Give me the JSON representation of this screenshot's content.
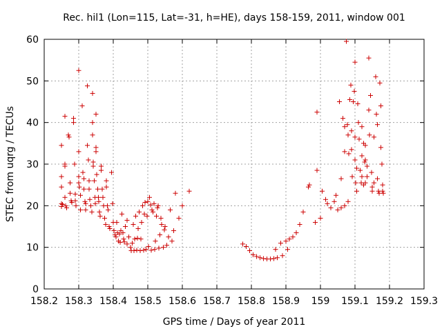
{
  "chart_data": {
    "type": "scatter",
    "title": "Rec. hil1 (Lon=115, Lat=-31, h=HE), days 158-159, 2011, window 001",
    "xlabel": "GPS time / Days of year 2011",
    "ylabel": "STEC from uqrg / TECUs",
    "xlim": [
      158.2,
      159.3
    ],
    "ylim": [
      0,
      60
    ],
    "xticks": [
      "158.2",
      "158.3",
      "158.4",
      "158.5",
      "158.6",
      "158.7",
      "158.8",
      "158.9",
      "159",
      "159.1",
      "159.2",
      "159.3"
    ],
    "yticks": [
      "0",
      "10",
      "20",
      "30",
      "40",
      "50",
      "60"
    ],
    "grid": true,
    "marker": "+",
    "color": "#cc0000",
    "series": [
      {
        "points": [
          [
            158.25,
            34.5
          ],
          [
            158.25,
            27
          ],
          [
            158.25,
            24.5
          ],
          [
            158.25,
            20.5
          ],
          [
            158.25,
            19.8
          ],
          [
            158.253,
            20.3
          ],
          [
            158.26,
            41.5
          ],
          [
            158.26,
            30
          ],
          [
            158.26,
            29.5
          ],
          [
            158.26,
            22
          ],
          [
            158.262,
            20
          ],
          [
            158.265,
            19.5
          ],
          [
            158.27,
            37
          ],
          [
            158.272,
            36.5
          ],
          [
            158.275,
            25.5
          ],
          [
            158.275,
            23
          ],
          [
            158.278,
            21.2
          ],
          [
            158.28,
            20.8
          ],
          [
            158.285,
            41
          ],
          [
            158.285,
            40
          ],
          [
            158.288,
            30
          ],
          [
            158.29,
            22.8
          ],
          [
            158.29,
            21.2
          ],
          [
            158.292,
            20
          ],
          [
            158.3,
            52.5
          ],
          [
            158.3,
            33
          ],
          [
            158.3,
            27
          ],
          [
            158.3,
            25.5
          ],
          [
            158.302,
            24.5
          ],
          [
            158.305,
            22.5
          ],
          [
            158.305,
            19
          ],
          [
            158.31,
            44
          ],
          [
            158.312,
            28
          ],
          [
            158.315,
            26.5
          ],
          [
            158.315,
            24
          ],
          [
            158.318,
            21
          ],
          [
            158.32,
            20.5
          ],
          [
            158.32,
            19
          ],
          [
            158.325,
            48.8
          ],
          [
            158.325,
            34.5
          ],
          [
            158.328,
            31
          ],
          [
            158.33,
            26
          ],
          [
            158.33,
            24
          ],
          [
            158.332,
            21.5
          ],
          [
            158.335,
            20
          ],
          [
            158.338,
            18.5
          ],
          [
            158.34,
            47
          ],
          [
            158.34,
            40
          ],
          [
            158.34,
            37
          ],
          [
            158.342,
            30.5
          ],
          [
            158.342,
            29.5
          ],
          [
            158.345,
            26
          ],
          [
            158.347,
            22
          ],
          [
            158.348,
            20.5
          ],
          [
            158.35,
            42
          ],
          [
            158.35,
            34
          ],
          [
            158.35,
            33
          ],
          [
            158.352,
            27.5
          ],
          [
            158.355,
            24
          ],
          [
            158.357,
            22
          ],
          [
            158.358,
            21
          ],
          [
            158.36,
            18.5
          ],
          [
            158.362,
            17.5
          ],
          [
            158.365,
            29.5
          ],
          [
            158.365,
            28.5
          ],
          [
            158.368,
            24
          ],
          [
            158.37,
            22
          ],
          [
            158.372,
            20
          ],
          [
            158.375,
            17
          ],
          [
            158.378,
            15.5
          ],
          [
            158.38,
            26
          ],
          [
            158.38,
            24.5
          ],
          [
            158.383,
            20
          ],
          [
            158.385,
            19
          ],
          [
            158.388,
            15
          ],
          [
            158.39,
            14.5
          ],
          [
            158.395,
            28
          ],
          [
            158.398,
            20.5
          ],
          [
            158.4,
            16
          ],
          [
            158.402,
            14
          ],
          [
            158.405,
            13
          ],
          [
            158.408,
            12.5
          ],
          [
            158.41,
            16
          ],
          [
            158.412,
            13.5
          ],
          [
            158.415,
            11.5
          ],
          [
            158.418,
            13.2
          ],
          [
            158.42,
            11.2
          ],
          [
            158.422,
            14
          ],
          [
            158.425,
            18
          ],
          [
            158.428,
            13.5
          ],
          [
            158.43,
            12
          ],
          [
            158.432,
            11.3
          ],
          [
            158.435,
            15
          ],
          [
            158.44,
            10.8
          ],
          [
            158.44,
            16.5
          ],
          [
            158.445,
            12.5
          ],
          [
            158.45,
            10
          ],
          [
            158.452,
            9.2
          ],
          [
            158.455,
            11
          ],
          [
            158.458,
            15.5
          ],
          [
            158.46,
            9.2
          ],
          [
            158.462,
            12
          ],
          [
            158.465,
            17.5
          ],
          [
            158.468,
            9.3
          ],
          [
            158.47,
            12.2
          ],
          [
            158.472,
            14.5
          ],
          [
            158.475,
            18.5
          ],
          [
            158.478,
            9.2
          ],
          [
            158.48,
            12
          ],
          [
            158.482,
            16
          ],
          [
            158.485,
            20
          ],
          [
            158.488,
            9.3
          ],
          [
            158.49,
            18
          ],
          [
            158.492,
            20.8
          ],
          [
            158.495,
            9.5
          ],
          [
            158.498,
            17.5
          ],
          [
            158.5,
            21
          ],
          [
            158.502,
            10.2
          ],
          [
            158.505,
            22
          ],
          [
            158.508,
            20.2
          ],
          [
            158.51,
            9.3
          ],
          [
            158.512,
            19
          ],
          [
            158.515,
            18.5
          ],
          [
            158.518,
            20.5
          ],
          [
            158.52,
            9.5
          ],
          [
            158.522,
            11.5
          ],
          [
            158.525,
            17.5
          ],
          [
            158.528,
            19.5
          ],
          [
            158.53,
            20
          ],
          [
            158.532,
            9.8
          ],
          [
            158.535,
            13
          ],
          [
            158.538,
            17
          ],
          [
            158.54,
            15.5
          ],
          [
            158.545,
            10
          ],
          [
            158.548,
            14.2
          ],
          [
            158.55,
            15
          ],
          [
            158.555,
            10.5
          ],
          [
            158.56,
            12.5
          ],
          [
            158.565,
            19
          ],
          [
            158.57,
            11.5
          ],
          [
            158.575,
            14
          ],
          [
            158.58,
            23
          ],
          [
            158.59,
            17
          ],
          [
            158.6,
            20
          ],
          [
            158.62,
            23.5
          ],
          [
            158.775,
            10.8
          ],
          [
            158.785,
            10.2
          ],
          [
            158.795,
            9.2
          ],
          [
            158.805,
            8.2
          ],
          [
            158.815,
            7.8
          ],
          [
            158.825,
            7.5
          ],
          [
            158.835,
            7.3
          ],
          [
            158.845,
            7.2
          ],
          [
            158.855,
            7.2
          ],
          [
            158.865,
            7.3
          ],
          [
            158.87,
            9.5
          ],
          [
            158.875,
            7.5
          ],
          [
            158.885,
            11
          ],
          [
            158.89,
            8
          ],
          [
            158.9,
            11.5
          ],
          [
            158.905,
            9.5
          ],
          [
            158.91,
            12
          ],
          [
            158.92,
            12.5
          ],
          [
            158.93,
            13.5
          ],
          [
            158.94,
            15.5
          ],
          [
            158.95,
            18.5
          ],
          [
            158.965,
            24.5
          ],
          [
            158.968,
            25
          ],
          [
            158.985,
            16
          ],
          [
            158.99,
            42.5
          ],
          [
            158.99,
            28.5
          ],
          [
            159.0,
            17
          ],
          [
            159.005,
            23.5
          ],
          [
            159.015,
            21.5
          ],
          [
            159.02,
            20.5
          ],
          [
            159.03,
            19.5
          ],
          [
            159.04,
            21
          ],
          [
            159.045,
            22.5
          ],
          [
            159.05,
            19
          ],
          [
            159.055,
            45
          ],
          [
            159.06,
            26.5
          ],
          [
            159.06,
            19.5
          ],
          [
            159.065,
            41
          ],
          [
            159.07,
            39
          ],
          [
            159.07,
            33
          ],
          [
            159.07,
            20
          ],
          [
            159.075,
            59.5
          ],
          [
            159.078,
            39.5
          ],
          [
            159.08,
            37
          ],
          [
            159.08,
            21
          ],
          [
            159.082,
            32.5
          ],
          [
            159.085,
            45.5
          ],
          [
            159.088,
            49
          ],
          [
            159.09,
            38
          ],
          [
            159.09,
            33.5
          ],
          [
            159.092,
            27
          ],
          [
            159.095,
            45
          ],
          [
            159.098,
            47.5
          ],
          [
            159.1,
            54.5
          ],
          [
            159.1,
            36.5
          ],
          [
            159.1,
            31
          ],
          [
            159.102,
            25.5
          ],
          [
            159.105,
            29
          ],
          [
            159.105,
            23.5
          ],
          [
            159.108,
            44.5
          ],
          [
            159.11,
            40
          ],
          [
            159.112,
            36
          ],
          [
            159.115,
            28.5
          ],
          [
            159.118,
            25.5
          ],
          [
            159.12,
            39
          ],
          [
            159.12,
            32
          ],
          [
            159.12,
            27
          ],
          [
            159.125,
            35
          ],
          [
            159.125,
            25
          ],
          [
            159.128,
            30.5
          ],
          [
            159.13,
            34.5
          ],
          [
            159.13,
            31
          ],
          [
            159.13,
            25.5
          ],
          [
            159.135,
            29.5
          ],
          [
            159.135,
            27
          ],
          [
            159.14,
            55.5
          ],
          [
            159.14,
            43
          ],
          [
            159.142,
            37
          ],
          [
            159.145,
            46.5
          ],
          [
            159.148,
            28
          ],
          [
            159.15,
            24.5
          ],
          [
            159.15,
            23.5
          ],
          [
            159.155,
            36.5
          ],
          [
            159.155,
            25.5
          ],
          [
            159.16,
            51
          ],
          [
            159.162,
            42
          ],
          [
            159.165,
            39.5
          ],
          [
            159.165,
            26.5
          ],
          [
            159.168,
            23.5
          ],
          [
            159.17,
            23
          ],
          [
            159.172,
            49.5
          ],
          [
            159.175,
            44
          ],
          [
            159.175,
            34
          ],
          [
            159.178,
            30
          ],
          [
            159.18,
            25
          ],
          [
            159.18,
            23.5
          ],
          [
            159.182,
            23
          ]
        ]
      }
    ]
  }
}
